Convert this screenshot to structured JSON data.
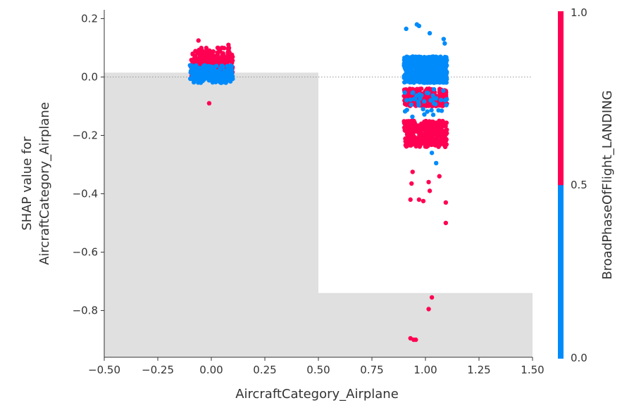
{
  "chart_data": {
    "type": "scatter",
    "title": "",
    "xlabel": "AircraftCategory_Airplane",
    "ylabel": "SHAP value for\nAircraftCategory_Airplane",
    "xlim": [
      -0.5,
      1.5
    ],
    "ylim": [
      -0.96,
      0.23
    ],
    "xticks": [
      "−0.50",
      "−0.25",
      "0.00",
      "0.25",
      "0.50",
      "0.75",
      "1.00",
      "1.25",
      "1.50"
    ],
    "xtick_values": [
      -0.5,
      -0.25,
      0,
      0.25,
      0.5,
      0.75,
      1.0,
      1.25,
      1.5
    ],
    "yticks": [
      "0.2",
      "0.0",
      "−0.2",
      "−0.4",
      "−0.6",
      "−0.8"
    ],
    "ytick_values": [
      0.2,
      0.0,
      -0.2,
      -0.4,
      -0.6,
      -0.8
    ],
    "grid": false,
    "reference_line_y": 0.0,
    "background_histogram": [
      {
        "x_from": -0.5,
        "x_to": 0.5,
        "height": 0.015
      },
      {
        "x_from": 0.5,
        "x_to": 1.5,
        "height": -0.74
      }
    ],
    "colorbar": {
      "label": "BroadPhaseOfFlight_LANDING",
      "min_label": "0.0",
      "mid_label": "0.5",
      "max_label": "1.0",
      "low_color": "#008bfb",
      "high_color": "#ff0052"
    },
    "clusters": [
      {
        "x_center": 0,
        "x_jitter": 0.1,
        "color_value": 1,
        "y_bands": [
          [
            -0.005,
            0.07
          ],
          [
            0.0,
            0.1
          ]
        ],
        "count": 300
      },
      {
        "x_center": 0,
        "x_jitter": 0.1,
        "color_value": 0,
        "y_bands": [
          [
            -0.02,
            0.04
          ]
        ],
        "count": 220
      },
      {
        "x_center": 1,
        "x_jitter": 0.1,
        "color_value": 0,
        "y_bands": [
          [
            -0.02,
            0.07
          ]
        ],
        "count": 700
      },
      {
        "x_center": 1,
        "x_jitter": 0.1,
        "color_value": 1,
        "y_bands": [
          [
            -0.1,
            -0.04
          ],
          [
            -0.24,
            -0.15
          ]
        ],
        "count": 600
      },
      {
        "x_center": 1,
        "x_jitter": 0.1,
        "color_value": 0,
        "y_bands": [
          [
            -0.14,
            -0.04
          ]
        ],
        "count": 40
      }
    ],
    "outliers": [
      {
        "x": -0.06,
        "y": 0.125,
        "c": 1
      },
      {
        "x": 0.05,
        "y": 0.1,
        "c": 1
      },
      {
        "x": 0.08,
        "y": 0.11,
        "c": 1
      },
      {
        "x": -0.01,
        "y": -0.09,
        "c": 1
      },
      {
        "x": 0.96,
        "y": 0.18,
        "c": 0
      },
      {
        "x": 0.97,
        "y": 0.175,
        "c": 0
      },
      {
        "x": 0.91,
        "y": 0.165,
        "c": 0
      },
      {
        "x": 1.085,
        "y": 0.13,
        "c": 0
      },
      {
        "x": 1.09,
        "y": 0.115,
        "c": 0
      },
      {
        "x": 1.02,
        "y": 0.15,
        "c": 0
      },
      {
        "x": 1.05,
        "y": -0.295,
        "c": 0
      },
      {
        "x": 1.03,
        "y": -0.26,
        "c": 0
      },
      {
        "x": 0.94,
        "y": -0.325,
        "c": 1
      },
      {
        "x": 0.935,
        "y": -0.365,
        "c": 1
      },
      {
        "x": 1.015,
        "y": -0.36,
        "c": 1
      },
      {
        "x": 1.02,
        "y": -0.39,
        "c": 1
      },
      {
        "x": 1.065,
        "y": -0.34,
        "c": 1
      },
      {
        "x": 0.93,
        "y": -0.42,
        "c": 1
      },
      {
        "x": 0.97,
        "y": -0.42,
        "c": 1
      },
      {
        "x": 0.99,
        "y": -0.425,
        "c": 1
      },
      {
        "x": 1.095,
        "y": -0.43,
        "c": 1
      },
      {
        "x": 1.095,
        "y": -0.5,
        "c": 1
      },
      {
        "x": 1.03,
        "y": -0.755,
        "c": 1
      },
      {
        "x": 1.015,
        "y": -0.795,
        "c": 1
      },
      {
        "x": 0.93,
        "y": -0.895,
        "c": 1
      },
      {
        "x": 0.945,
        "y": -0.9,
        "c": 1
      },
      {
        "x": 0.955,
        "y": -0.9,
        "c": 1
      }
    ]
  }
}
